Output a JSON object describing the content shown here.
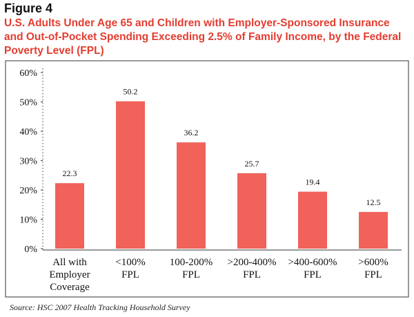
{
  "figure_label": "Figure 4",
  "source": "Source:  HSC 2007 Health Tracking Household Survey",
  "chart_data": {
    "type": "bar",
    "title": "U.S. Adults Under Age 65 and Children with Employer-Sponsored Insurance and Out-of-Pocket Spending Exceeding 2.5% of Family Income, by the Federal Poverty Level (FPL)",
    "categories": [
      "All with\nEmployer\nCoverage",
      "<100%\nFPL",
      "100-200%\nFPL",
      ">200-400%\nFPL",
      ">400-600%\nFPL",
      ">600%\nFPL"
    ],
    "values": [
      22.3,
      50.2,
      36.2,
      25.7,
      19.4,
      12.5
    ],
    "color": "#f0625a",
    "ylim": [
      0,
      60
    ],
    "yticks": [
      {
        "value": 0,
        "label": "0%"
      },
      {
        "value": 10,
        "label": "10%"
      },
      {
        "value": 20,
        "label": "20%"
      },
      {
        "value": 30,
        "label": "30%"
      },
      {
        "value": 40,
        "label": "40%"
      },
      {
        "value": 50,
        "label": "50%"
      },
      {
        "value": 60,
        "label": "60%"
      }
    ],
    "grid": false
  }
}
